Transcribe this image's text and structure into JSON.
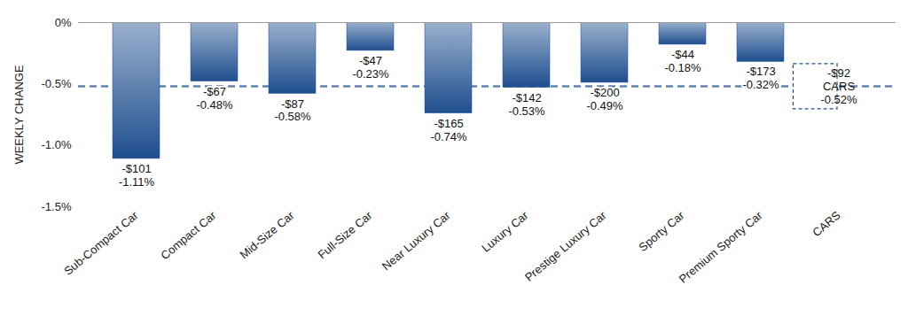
{
  "chart_data": {
    "type": "bar",
    "y_label": "WEEKLY CHANGE",
    "categories": [
      "Sub-Compact Car",
      "Compact Car",
      "Mid-Size Car",
      "Full-Size Car",
      "Near Luxury Car",
      "Luxury Car",
      "Prestige Luxury Car",
      "Sporty Car",
      "Premium Sporty Car",
      "CARS"
    ],
    "values": [
      -1.11,
      -0.48,
      -0.58,
      -0.23,
      -0.74,
      -0.53,
      -0.49,
      -0.18,
      -0.32,
      null
    ],
    "value_labels": [
      "-1.11%",
      "-0.48%",
      "-0.58%",
      "-0.23%",
      "-0.74%",
      "-0.53%",
      "-0.49%",
      "-0.18%",
      "-0.32%",
      null
    ],
    "dollar_values": [
      -101,
      -67,
      -87,
      -47,
      -165,
      -142,
      -200,
      -44,
      -173,
      null
    ],
    "dollar_labels": [
      "-$101",
      "-$67",
      "-$87",
      "-$47",
      "-$165",
      "-$142",
      "-$200",
      "-$44",
      "-$173",
      null
    ],
    "average": {
      "name": "CARS",
      "value": -0.52,
      "value_label": "-0.52%",
      "dollar_value": -92,
      "dollar_label": "-$92"
    },
    "color": "#1f4f8f",
    "ylim": [
      -1.5,
      0
    ],
    "yticks": [
      {
        "value": -1.5,
        "label": "-1.5%"
      },
      {
        "value": -1.0,
        "label": "-1.0%"
      },
      {
        "value": -0.5,
        "label": "-0.5%"
      },
      {
        "value": 0,
        "label": "0%"
      }
    ],
    "grid": false,
    "data_labels": true
  }
}
